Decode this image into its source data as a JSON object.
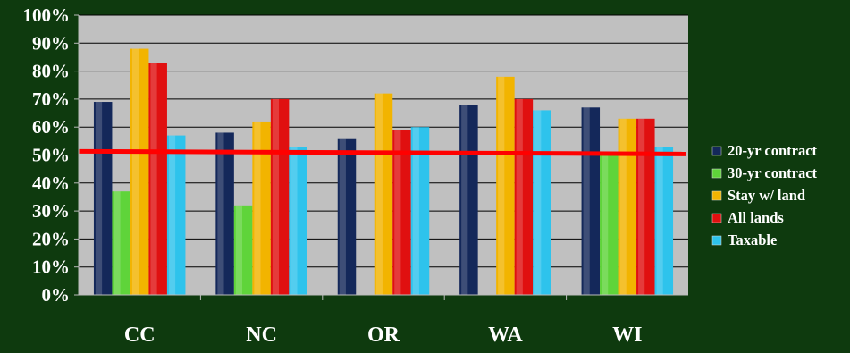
{
  "chart_data": {
    "type": "bar",
    "categories": [
      "CC",
      "NC",
      "OR",
      "WA",
      "WI"
    ],
    "series": [
      {
        "name": "20-yr contract",
        "color": "#14285a",
        "values": [
          69,
          58,
          56,
          68,
          67
        ]
      },
      {
        "name": "30-yr contract",
        "color": "#5fd43a",
        "values": [
          37,
          32,
          null,
          null,
          50
        ]
      },
      {
        "name": "Stay w/ land",
        "color": "#f2b400",
        "values": [
          88,
          62,
          72,
          78,
          63
        ]
      },
      {
        "name": "All lands",
        "color": "#e01010",
        "values": [
          83,
          70,
          59,
          70,
          63
        ]
      },
      {
        "name": "Taxable",
        "color": "#2ec3ec",
        "values": [
          57,
          53,
          60,
          66,
          53
        ]
      }
    ],
    "ylim": [
      0,
      100
    ],
    "yticks": [
      "0%",
      "10%",
      "20%",
      "30%",
      "40%",
      "50%",
      "60%",
      "70%",
      "80%",
      "90%",
      "100%"
    ],
    "reference_line": {
      "value": 51,
      "color": "#ff0000"
    },
    "grid": true,
    "plot_background": "#c0c0c0",
    "legend": "right",
    "xlabel": "",
    "ylabel": "",
    "title": ""
  }
}
